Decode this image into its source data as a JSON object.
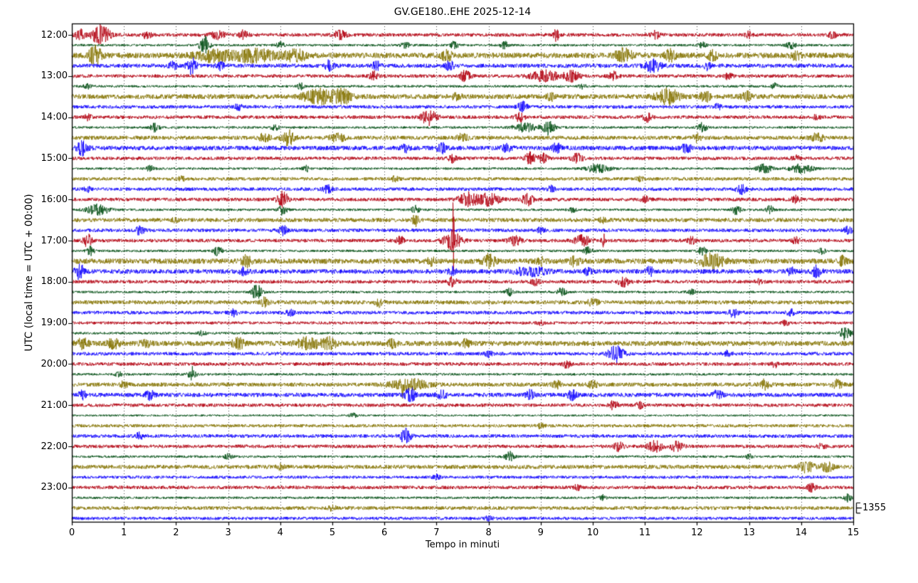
{
  "chart_data": {
    "type": "line",
    "subtype": "seismogram-helicorder-dayplot",
    "title": "GV.GE180..EHE 2025-12-14",
    "xlabel": "Tempo in minuti",
    "ylabel": "UTC (local time = UTC + 00:00)",
    "xlim": [
      0,
      15
    ],
    "x_tick_labels": [
      "0",
      "1",
      "2",
      "3",
      "4",
      "5",
      "6",
      "7",
      "8",
      "9",
      "10",
      "11",
      "12",
      "13",
      "14",
      "15"
    ],
    "hour_labels": [
      "12:00",
      "13:00",
      "14:00",
      "15:00",
      "16:00",
      "17:00",
      "18:00",
      "19:00",
      "20:00",
      "21:00",
      "22:00",
      "23:00"
    ],
    "rows": 48,
    "minutes_per_row": 15,
    "rows_per_hour": 4,
    "grid": {
      "vertical_dotted": true,
      "color": "#444444"
    },
    "legend": "none",
    "background": "#ffffff",
    "border_color": "#000000",
    "trace_colors": [
      "#B2000F",
      "#004C12",
      "#847200",
      "#0E01FF"
    ],
    "scale_marker": {
      "label": "1355",
      "row": 46
    },
    "color_noise": [
      2.4,
      1.7,
      2.8,
      2.4
    ],
    "row_noise": {
      "2": 1.35,
      "3": 1.2,
      "6": 1.2,
      "11": 1.3,
      "14": 0.85,
      "22": 1.3,
      "23": 1.3,
      "28": 0.85,
      "30": 1.25,
      "35": 1.2,
      "37": 0.8,
      "38": 0.8,
      "43": 0.85,
      "46": 0.9,
      "47": 0.9
    },
    "events": [
      [
        0,
        0.15,
        8,
        0.06
      ],
      [
        0,
        0.55,
        13,
        0.12
      ],
      [
        0,
        1.45,
        6,
        0.06
      ],
      [
        0,
        2.8,
        5,
        0.1
      ],
      [
        0,
        3.3,
        6,
        0.06
      ],
      [
        0,
        5.15,
        6,
        0.08
      ],
      [
        0,
        9.3,
        11,
        0.03
      ],
      [
        0,
        11.2,
        5,
        0.06
      ],
      [
        0,
        13.0,
        4,
        0.05
      ],
      [
        0,
        14.6,
        5,
        0.05
      ],
      [
        1,
        2.55,
        12,
        0.07
      ],
      [
        1,
        4.0,
        4,
        0.05
      ],
      [
        1,
        6.4,
        5,
        0.05
      ],
      [
        1,
        7.35,
        6,
        0.05
      ],
      [
        1,
        8.3,
        5,
        0.05
      ],
      [
        1,
        12.1,
        4,
        0.05
      ],
      [
        1,
        13.8,
        5,
        0.06
      ],
      [
        2,
        0.45,
        13,
        0.08
      ],
      [
        2,
        2.7,
        7,
        0.25
      ],
      [
        2,
        3.5,
        8,
        0.3
      ],
      [
        2,
        4.3,
        7,
        0.15
      ],
      [
        2,
        7.2,
        7,
        0.07
      ],
      [
        2,
        10.6,
        8,
        0.12
      ],
      [
        2,
        11.5,
        7,
        0.08
      ],
      [
        2,
        12.3,
        6,
        0.06
      ],
      [
        2,
        13.9,
        5,
        0.06
      ],
      [
        3,
        1.95,
        6,
        0.05
      ],
      [
        3,
        2.3,
        11,
        0.06
      ],
      [
        3,
        2.85,
        5,
        0.05
      ],
      [
        3,
        4.95,
        7,
        0.06
      ],
      [
        3,
        5.85,
        6,
        0.05
      ],
      [
        3,
        7.25,
        6,
        0.06
      ],
      [
        3,
        11.15,
        9,
        0.1
      ],
      [
        3,
        12.2,
        5,
        0.05
      ],
      [
        4,
        5.8,
        6,
        0.06
      ],
      [
        4,
        7.55,
        7,
        0.07
      ],
      [
        4,
        9.1,
        7,
        0.2
      ],
      [
        4,
        9.6,
        7,
        0.1
      ],
      [
        4,
        10.4,
        6,
        0.06
      ],
      [
        4,
        12.6,
        4,
        0.05
      ],
      [
        5,
        0.3,
        3,
        0.05
      ],
      [
        5,
        4.4,
        4,
        0.05
      ],
      [
        5,
        9.8,
        3,
        0.05
      ],
      [
        5,
        13.5,
        4,
        0.05
      ],
      [
        6,
        4.75,
        10,
        0.2
      ],
      [
        6,
        5.2,
        9,
        0.12
      ],
      [
        6,
        7.4,
        5,
        0.06
      ],
      [
        6,
        9.2,
        5,
        0.05
      ],
      [
        6,
        11.45,
        10,
        0.15
      ],
      [
        6,
        12.15,
        7,
        0.07
      ],
      [
        6,
        12.95,
        6,
        0.07
      ],
      [
        7,
        3.2,
        4,
        0.05
      ],
      [
        7,
        8.65,
        7,
        0.06
      ],
      [
        7,
        12.4,
        4,
        0.05
      ],
      [
        8,
        0.3,
        4,
        0.05
      ],
      [
        8,
        6.85,
        10,
        0.1
      ],
      [
        8,
        8.6,
        6,
        0.06
      ],
      [
        8,
        11.05,
        6,
        0.06
      ],
      [
        8,
        14.3,
        4,
        0.05
      ],
      [
        9,
        1.6,
        6,
        0.06
      ],
      [
        9,
        3.9,
        4,
        0.05
      ],
      [
        9,
        8.7,
        6,
        0.15
      ],
      [
        9,
        9.15,
        10,
        0.08
      ],
      [
        9,
        12.1,
        6,
        0.06
      ],
      [
        10,
        3.7,
        6,
        0.07
      ],
      [
        10,
        4.15,
        10,
        0.08
      ],
      [
        10,
        5.1,
        5,
        0.1
      ],
      [
        10,
        7.5,
        5,
        0.07
      ],
      [
        10,
        12.0,
        5,
        0.05
      ],
      [
        10,
        14.3,
        6,
        0.08
      ],
      [
        11,
        0.2,
        9,
        0.07
      ],
      [
        11,
        6.4,
        5,
        0.05
      ],
      [
        11,
        7.1,
        6,
        0.06
      ],
      [
        11,
        8.35,
        6,
        0.06
      ],
      [
        11,
        9.3,
        6,
        0.06
      ],
      [
        11,
        11.8,
        6,
        0.06
      ],
      [
        12,
        7.3,
        5,
        0.05
      ],
      [
        12,
        8.8,
        8,
        0.07
      ],
      [
        12,
        9.05,
        7,
        0.06
      ],
      [
        12,
        9.7,
        6,
        0.07
      ],
      [
        12,
        13.9,
        4,
        0.05
      ],
      [
        13,
        1.5,
        4,
        0.05
      ],
      [
        13,
        4.5,
        4,
        0.05
      ],
      [
        13,
        10.1,
        6,
        0.15
      ],
      [
        13,
        13.3,
        6,
        0.1
      ],
      [
        13,
        14.0,
        6,
        0.15
      ],
      [
        14,
        2.1,
        3,
        0.05
      ],
      [
        14,
        6.2,
        3,
        0.05
      ],
      [
        14,
        10.9,
        3,
        0.05
      ],
      [
        15,
        0.3,
        4,
        0.05
      ],
      [
        15,
        4.9,
        6,
        0.06
      ],
      [
        15,
        9.2,
        4,
        0.05
      ],
      [
        15,
        12.85,
        7,
        0.06
      ],
      [
        16,
        4.05,
        11,
        0.07
      ],
      [
        16,
        7.6,
        9,
        0.12
      ],
      [
        16,
        8.0,
        8,
        0.15
      ],
      [
        16,
        8.75,
        8,
        0.07
      ],
      [
        16,
        11.0,
        4,
        0.05
      ],
      [
        16,
        13.9,
        5,
        0.05
      ],
      [
        17,
        0.5,
        7,
        0.15
      ],
      [
        17,
        4.05,
        7,
        0.06
      ],
      [
        17,
        6.6,
        6,
        0.05
      ],
      [
        17,
        9.6,
        4,
        0.05
      ],
      [
        17,
        12.75,
        6,
        0.06
      ],
      [
        17,
        13.4,
        5,
        0.05
      ],
      [
        18,
        2.0,
        3,
        0.05
      ],
      [
        18,
        6.6,
        8,
        0.04
      ],
      [
        18,
        10.2,
        3,
        0.05
      ],
      [
        19,
        1.3,
        6,
        0.06
      ],
      [
        19,
        4.05,
        6,
        0.06
      ],
      [
        19,
        9.0,
        4,
        0.05
      ],
      [
        19,
        14.9,
        5,
        0.05
      ],
      [
        20,
        0.3,
        8,
        0.06
      ],
      [
        20,
        6.3,
        6,
        0.05
      ],
      [
        20,
        7.3,
        12,
        0.12
      ],
      [
        20,
        7.32,
        45,
        0.012
      ],
      [
        20,
        8.5,
        7,
        0.08
      ],
      [
        20,
        9.8,
        7,
        0.1
      ],
      [
        20,
        10.2,
        12,
        0.02
      ],
      [
        20,
        11.9,
        5,
        0.05
      ],
      [
        20,
        13.9,
        4,
        0.05
      ],
      [
        21,
        0.35,
        6,
        0.05
      ],
      [
        21,
        2.8,
        7,
        0.06
      ],
      [
        21,
        9.9,
        5,
        0.06
      ],
      [
        21,
        12.1,
        5,
        0.06
      ],
      [
        21,
        14.4,
        4,
        0.05
      ],
      [
        22,
        3.35,
        7,
        0.06
      ],
      [
        22,
        6.9,
        5,
        0.05
      ],
      [
        22,
        8.0,
        9,
        0.08
      ],
      [
        22,
        9.0,
        5,
        0.06
      ],
      [
        22,
        9.65,
        6,
        0.06
      ],
      [
        22,
        12.3,
        10,
        0.15
      ],
      [
        22,
        14.8,
        6,
        0.05
      ],
      [
        23,
        0.15,
        10,
        0.06
      ],
      [
        23,
        3.3,
        5,
        0.05
      ],
      [
        23,
        7.3,
        6,
        0.05
      ],
      [
        23,
        8.8,
        6,
        0.2
      ],
      [
        23,
        9.9,
        5,
        0.05
      ],
      [
        23,
        11.1,
        6,
        0.05
      ],
      [
        23,
        13.8,
        5,
        0.05
      ],
      [
        23,
        14.3,
        9,
        0.06
      ],
      [
        24,
        7.3,
        6,
        0.06
      ],
      [
        24,
        8.9,
        5,
        0.05
      ],
      [
        24,
        10.6,
        6,
        0.07
      ],
      [
        24,
        13.2,
        4,
        0.05
      ],
      [
        25,
        3.55,
        10,
        0.07
      ],
      [
        25,
        8.4,
        5,
        0.05
      ],
      [
        25,
        9.4,
        5,
        0.06
      ],
      [
        25,
        11.9,
        4,
        0.05
      ],
      [
        26,
        3.7,
        6,
        0.05
      ],
      [
        26,
        5.9,
        5,
        0.05
      ],
      [
        26,
        10.0,
        4,
        0.08
      ],
      [
        27,
        3.1,
        5,
        0.05
      ],
      [
        27,
        4.2,
        5,
        0.05
      ],
      [
        27,
        12.7,
        6,
        0.06
      ],
      [
        27,
        13.8,
        4,
        0.05
      ],
      [
        28,
        9.0,
        3,
        0.05
      ],
      [
        28,
        13.7,
        4,
        0.05
      ],
      [
        29,
        2.5,
        3,
        0.05
      ],
      [
        29,
        14.85,
        9,
        0.07
      ],
      [
        30,
        0.2,
        6,
        0.08
      ],
      [
        30,
        0.8,
        6,
        0.08
      ],
      [
        30,
        1.4,
        5,
        0.07
      ],
      [
        30,
        3.2,
        7,
        0.08
      ],
      [
        30,
        4.55,
        8,
        0.15
      ],
      [
        30,
        4.95,
        7,
        0.1
      ],
      [
        30,
        6.15,
        5,
        0.06
      ],
      [
        30,
        7.55,
        5,
        0.06
      ],
      [
        31,
        8.0,
        4,
        0.05
      ],
      [
        31,
        10.45,
        11,
        0.1
      ],
      [
        31,
        12.6,
        4,
        0.05
      ],
      [
        32,
        9.5,
        5,
        0.05
      ],
      [
        32,
        13.5,
        4,
        0.05
      ],
      [
        33,
        0.9,
        3,
        0.05
      ],
      [
        33,
        2.3,
        14,
        0.012
      ],
      [
        33,
        2.3,
        5,
        0.06
      ],
      [
        34,
        1.0,
        4,
        0.05
      ],
      [
        34,
        6.35,
        16,
        0.015
      ],
      [
        34,
        6.5,
        7,
        0.25
      ],
      [
        34,
        9.3,
        5,
        0.06
      ],
      [
        34,
        10.0,
        5,
        0.06
      ],
      [
        34,
        13.3,
        6,
        0.07
      ],
      [
        34,
        14.7,
        6,
        0.06
      ],
      [
        35,
        0.2,
        5,
        0.05
      ],
      [
        35,
        1.5,
        6,
        0.06
      ],
      [
        35,
        6.5,
        9,
        0.07
      ],
      [
        35,
        7.1,
        6,
        0.06
      ],
      [
        35,
        8.8,
        6,
        0.06
      ],
      [
        35,
        9.6,
        6,
        0.06
      ],
      [
        35,
        12.4,
        6,
        0.06
      ],
      [
        36,
        10.4,
        6,
        0.06
      ],
      [
        36,
        10.9,
        4,
        0.05
      ],
      [
        37,
        5.4,
        3,
        0.05
      ],
      [
        38,
        9.0,
        3,
        0.05
      ],
      [
        39,
        1.3,
        4,
        0.05
      ],
      [
        39,
        6.4,
        10,
        0.07
      ],
      [
        40,
        10.5,
        6,
        0.06
      ],
      [
        40,
        11.2,
        7,
        0.1
      ],
      [
        40,
        11.6,
        7,
        0.08
      ],
      [
        40,
        14.4,
        4,
        0.05
      ],
      [
        41,
        3.0,
        4,
        0.05
      ],
      [
        41,
        8.4,
        7,
        0.06
      ],
      [
        41,
        13.0,
        3,
        0.05
      ],
      [
        42,
        4.0,
        3,
        0.05
      ],
      [
        42,
        14.1,
        7,
        0.1
      ],
      [
        42,
        14.5,
        6,
        0.08
      ],
      [
        43,
        7.0,
        3,
        0.05
      ],
      [
        44,
        9.7,
        4,
        0.05
      ],
      [
        44,
        14.2,
        5,
        0.06
      ],
      [
        45,
        10.2,
        4,
        0.05
      ],
      [
        45,
        14.9,
        5,
        0.05
      ],
      [
        46,
        5.0,
        3,
        0.05
      ],
      [
        47,
        8.0,
        3,
        0.05
      ]
    ]
  }
}
